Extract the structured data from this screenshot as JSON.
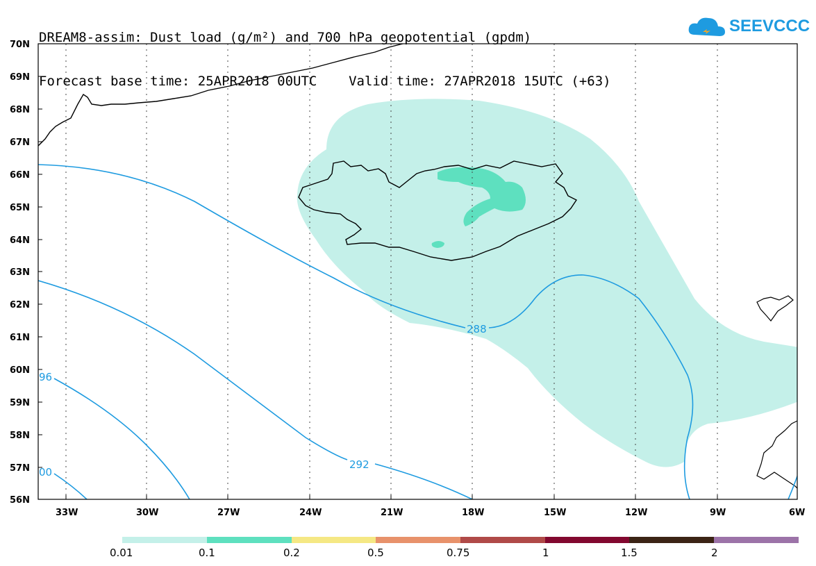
{
  "title": {
    "line1": "DREAM8-assim: Dust load (g/m²) and 700 hPa geopotential (gpdm)",
    "line2": "Forecast base time: 25APR2018 00UTC    Valid time: 27APR2018 15UTC (+63)"
  },
  "logo": {
    "text": "SEEVCCC",
    "icon": "cloud-icon"
  },
  "axes": {
    "lat_labels": [
      "70N",
      "69N",
      "68N",
      "67N",
      "66N",
      "65N",
      "64N",
      "63N",
      "62N",
      "61N",
      "60N",
      "59N",
      "58N",
      "57N",
      "56N"
    ],
    "lon_labels": [
      "33W",
      "30W",
      "27W",
      "24W",
      "21W",
      "18W",
      "15W",
      "12W",
      "9W",
      "6W"
    ],
    "lat_range": [
      56,
      70
    ],
    "lon_range": [
      -34.3,
      -6
    ]
  },
  "contours": {
    "color": "#1e9be0",
    "labels": [
      "288",
      "292",
      "96",
      "00"
    ]
  },
  "colorbar": {
    "colors": [
      "#c4f0e9",
      "#5ee0bf",
      "#f5e884",
      "#e8926b",
      "#b04a48",
      "#82082f",
      "#3b2415",
      "#9c73a8"
    ],
    "labels": [
      "0.01",
      "0.1",
      "0.2",
      "0.5",
      "0.75",
      "1",
      "1.5",
      "2"
    ]
  },
  "shading": {
    "light": "#c4f0e9",
    "medium": "#5ee0bf"
  }
}
